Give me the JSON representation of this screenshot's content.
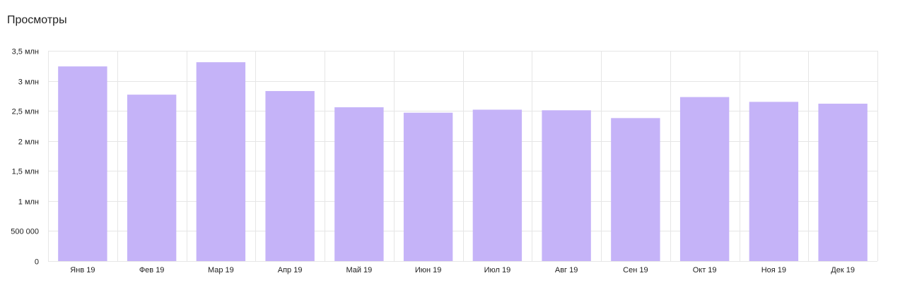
{
  "chart_data": {
    "type": "bar",
    "title": "Просмотры",
    "categories": [
      "Янв 19",
      "Фев 19",
      "Мар 19",
      "Апр 19",
      "Май 19",
      "Июн 19",
      "Июл 19",
      "Авг 19",
      "Сен 19",
      "Окт 19",
      "Ноя 19",
      "Дек 19"
    ],
    "values": [
      3240000,
      2770000,
      3310000,
      2830000,
      2560000,
      2470000,
      2520000,
      2510000,
      2380000,
      2730000,
      2650000,
      2620000
    ],
    "ylim": [
      0,
      3500000
    ],
    "y_ticks": [
      {
        "value": 0,
        "label": "0"
      },
      {
        "value": 500000,
        "label": "500 000"
      },
      {
        "value": 1000000,
        "label": "1 млн"
      },
      {
        "value": 1500000,
        "label": "1,5 млн"
      },
      {
        "value": 2000000,
        "label": "2 млн"
      },
      {
        "value": 2500000,
        "label": "2,5 млн"
      },
      {
        "value": 3000000,
        "label": "3 млн"
      },
      {
        "value": 3500000,
        "label": "3,5 млн"
      }
    ],
    "grid": true,
    "bar_color": "#c5b3f8",
    "grid_color": "#e6e6e6"
  }
}
